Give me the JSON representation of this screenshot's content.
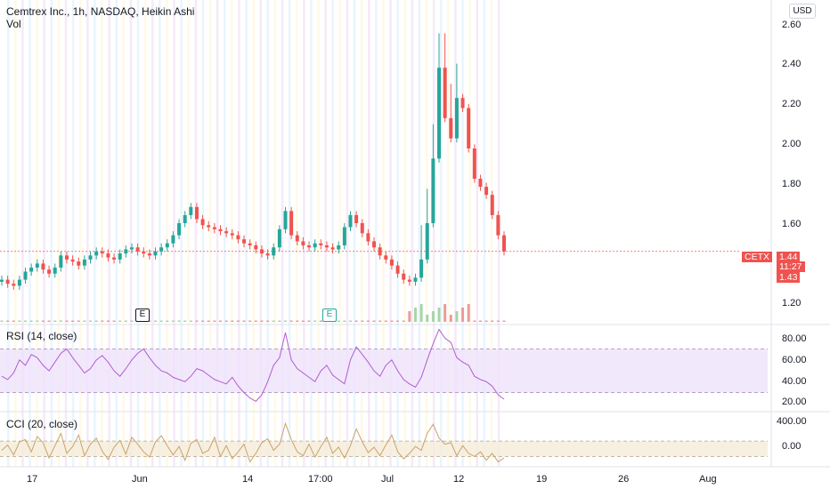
{
  "header": {
    "title": "Cemtrex Inc., 1h, NASDAQ, Heikin Ashi",
    "vol_label": "Vol",
    "currency": "USD"
  },
  "price_axis": [
    "2.60",
    "2.40",
    "2.20",
    "2.00",
    "1.80",
    "1.60",
    "1.20"
  ],
  "price_tags": {
    "symbol": "CETX",
    "last": "1.44",
    "countdown": "11:27",
    "low": "1.43"
  },
  "earnings_markers": [
    "E",
    "E"
  ],
  "x_axis": [
    "17",
    "Jun",
    "14",
    "17:00",
    "Jul",
    "12",
    "19",
    "26",
    "Aug"
  ],
  "colors": {
    "up": "#26a69a",
    "down": "#ef5350",
    "rsi": "#b15dd0",
    "cci": "#c9a36b"
  },
  "rsi": {
    "label": "RSI (14, close)",
    "axis": [
      "80.00",
      "60.00",
      "40.00",
      "20.00"
    ],
    "upper": 70,
    "lower": 30
  },
  "cci": {
    "label": "CCI (20, close)",
    "axis": [
      "400.00",
      "0.00"
    ],
    "upper": 100,
    "lower": -100
  },
  "chart_data": [
    {
      "type": "candlestick",
      "title": "Cemtrex Inc., 1h, NASDAQ, Heikin Ashi",
      "ylabel": "USD",
      "ylim": [
        1.1,
        2.65
      ],
      "x_ticks": [
        "17",
        "Jun",
        "14",
        "17:00",
        "Jul",
        "12",
        "19",
        "26",
        "Aug"
      ],
      "grid": false,
      "last_price": 1.44,
      "close_series": [
        1.3,
        1.28,
        1.27,
        1.3,
        1.34,
        1.36,
        1.38,
        1.35,
        1.33,
        1.36,
        1.42,
        1.4,
        1.39,
        1.37,
        1.4,
        1.42,
        1.44,
        1.43,
        1.41,
        1.4,
        1.43,
        1.45,
        1.46,
        1.44,
        1.43,
        1.42,
        1.44,
        1.46,
        1.48,
        1.52,
        1.58,
        1.62,
        1.66,
        1.6,
        1.57,
        1.56,
        1.55,
        1.54,
        1.53,
        1.52,
        1.5,
        1.48,
        1.47,
        1.45,
        1.43,
        1.42,
        1.46,
        1.55,
        1.64,
        1.52,
        1.49,
        1.47,
        1.46,
        1.48,
        1.47,
        1.46,
        1.45,
        1.47,
        1.56,
        1.62,
        1.58,
        1.53,
        1.49,
        1.46,
        1.42,
        1.4,
        1.37,
        1.33,
        1.3,
        1.29,
        1.31,
        1.4,
        1.58,
        1.9,
        2.35,
        2.1,
        2.0,
        2.2,
        2.15,
        1.95,
        1.8,
        1.76,
        1.72,
        1.62,
        1.52,
        1.44
      ]
    },
    {
      "type": "line",
      "title": "RSI (14, close)",
      "ylim": [
        15,
        90
      ],
      "bands": [
        30,
        70
      ],
      "values": [
        45,
        42,
        48,
        60,
        55,
        65,
        62,
        55,
        50,
        58,
        66,
        70,
        62,
        55,
        48,
        52,
        60,
        64,
        58,
        50,
        45,
        52,
        60,
        66,
        70,
        62,
        55,
        50,
        48,
        44,
        42,
        40,
        45,
        52,
        50,
        46,
        42,
        40,
        38,
        44,
        36,
        30,
        25,
        22,
        28,
        40,
        55,
        62,
        85,
        60,
        52,
        48,
        44,
        40,
        50,
        55,
        46,
        42,
        38,
        60,
        72,
        65,
        58,
        50,
        45,
        55,
        60,
        50,
        42,
        38,
        35,
        44,
        60,
        75,
        88,
        80,
        76,
        62,
        58,
        55,
        45,
        42,
        40,
        36,
        28,
        24
      ]
    },
    {
      "type": "line",
      "title": "CCI (20, close)",
      "ylim": [
        -200,
        450
      ],
      "bands": [
        -100,
        100
      ],
      "values": [
        -20,
        50,
        -80,
        90,
        120,
        -40,
        160,
        80,
        -120,
        40,
        200,
        -60,
        30,
        180,
        -90,
        60,
        140,
        -30,
        -140,
        20,
        110,
        -70,
        150,
        60,
        -40,
        -110,
        90,
        170,
        40,
        -80,
        30,
        -150,
        70,
        120,
        -60,
        -20,
        150,
        -100,
        40,
        -130,
        -40,
        60,
        -170,
        -60,
        80,
        130,
        -20,
        60,
        330,
        120,
        -40,
        -90,
        60,
        -110,
        30,
        150,
        -60,
        20,
        -120,
        40,
        260,
        90,
        -50,
        20,
        -90,
        50,
        180,
        -40,
        -130,
        -60,
        30,
        -20,
        200,
        320,
        140,
        60,
        80,
        -90,
        40,
        -60,
        -100,
        -40,
        -150,
        -60,
        -170,
        -120
      ]
    }
  ]
}
